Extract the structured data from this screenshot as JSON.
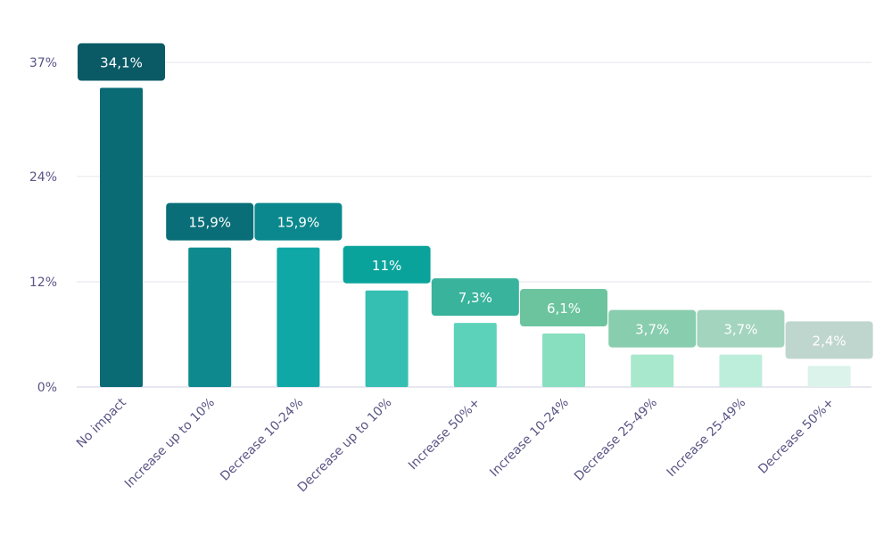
{
  "chart_data": {
    "type": "bar",
    "categories": [
      "No impact",
      "Increase up to 10%",
      "Decrease 10-24%",
      "Decrease up to 10%",
      "Increase 50%+",
      "Increase 10-24%",
      "Decrease 25-49%",
      "Increase 25-49%",
      "Decrease 50%+"
    ],
    "values": [
      34.1,
      15.9,
      15.9,
      11,
      7.3,
      6.1,
      3.7,
      3.7,
      2.4
    ],
    "value_labels": [
      "34,1%",
      "15,9%",
      "15,9%",
      "11%",
      "7,3%",
      "6,1%",
      "3,7%",
      "3,7%",
      "2,4%"
    ],
    "yticks": [
      0,
      12,
      24,
      37
    ],
    "ytick_labels": [
      "0%",
      "12%",
      "24%",
      "37%"
    ],
    "ylim": [
      0,
      37
    ],
    "grid": true,
    "bar_colors": [
      "#0a6b75",
      "#0e8a8f",
      "#0fa8a6",
      "#35bfb2",
      "#5dd2bb",
      "#88dfbf",
      "#a8e8cc",
      "#bdeedb",
      "#dbf3ea"
    ],
    "label_colors": [
      "#0a5a66",
      "#0a6e78",
      "#0a888d",
      "#0aa39b",
      "#39b39b",
      "#6cc49f",
      "#88cdae",
      "#a2d4be",
      "#bfd6ce"
    ],
    "colors": {
      "grid": "#e6e6ee",
      "axis_text": "#5a5585",
      "label_text": "#ffffff"
    }
  }
}
